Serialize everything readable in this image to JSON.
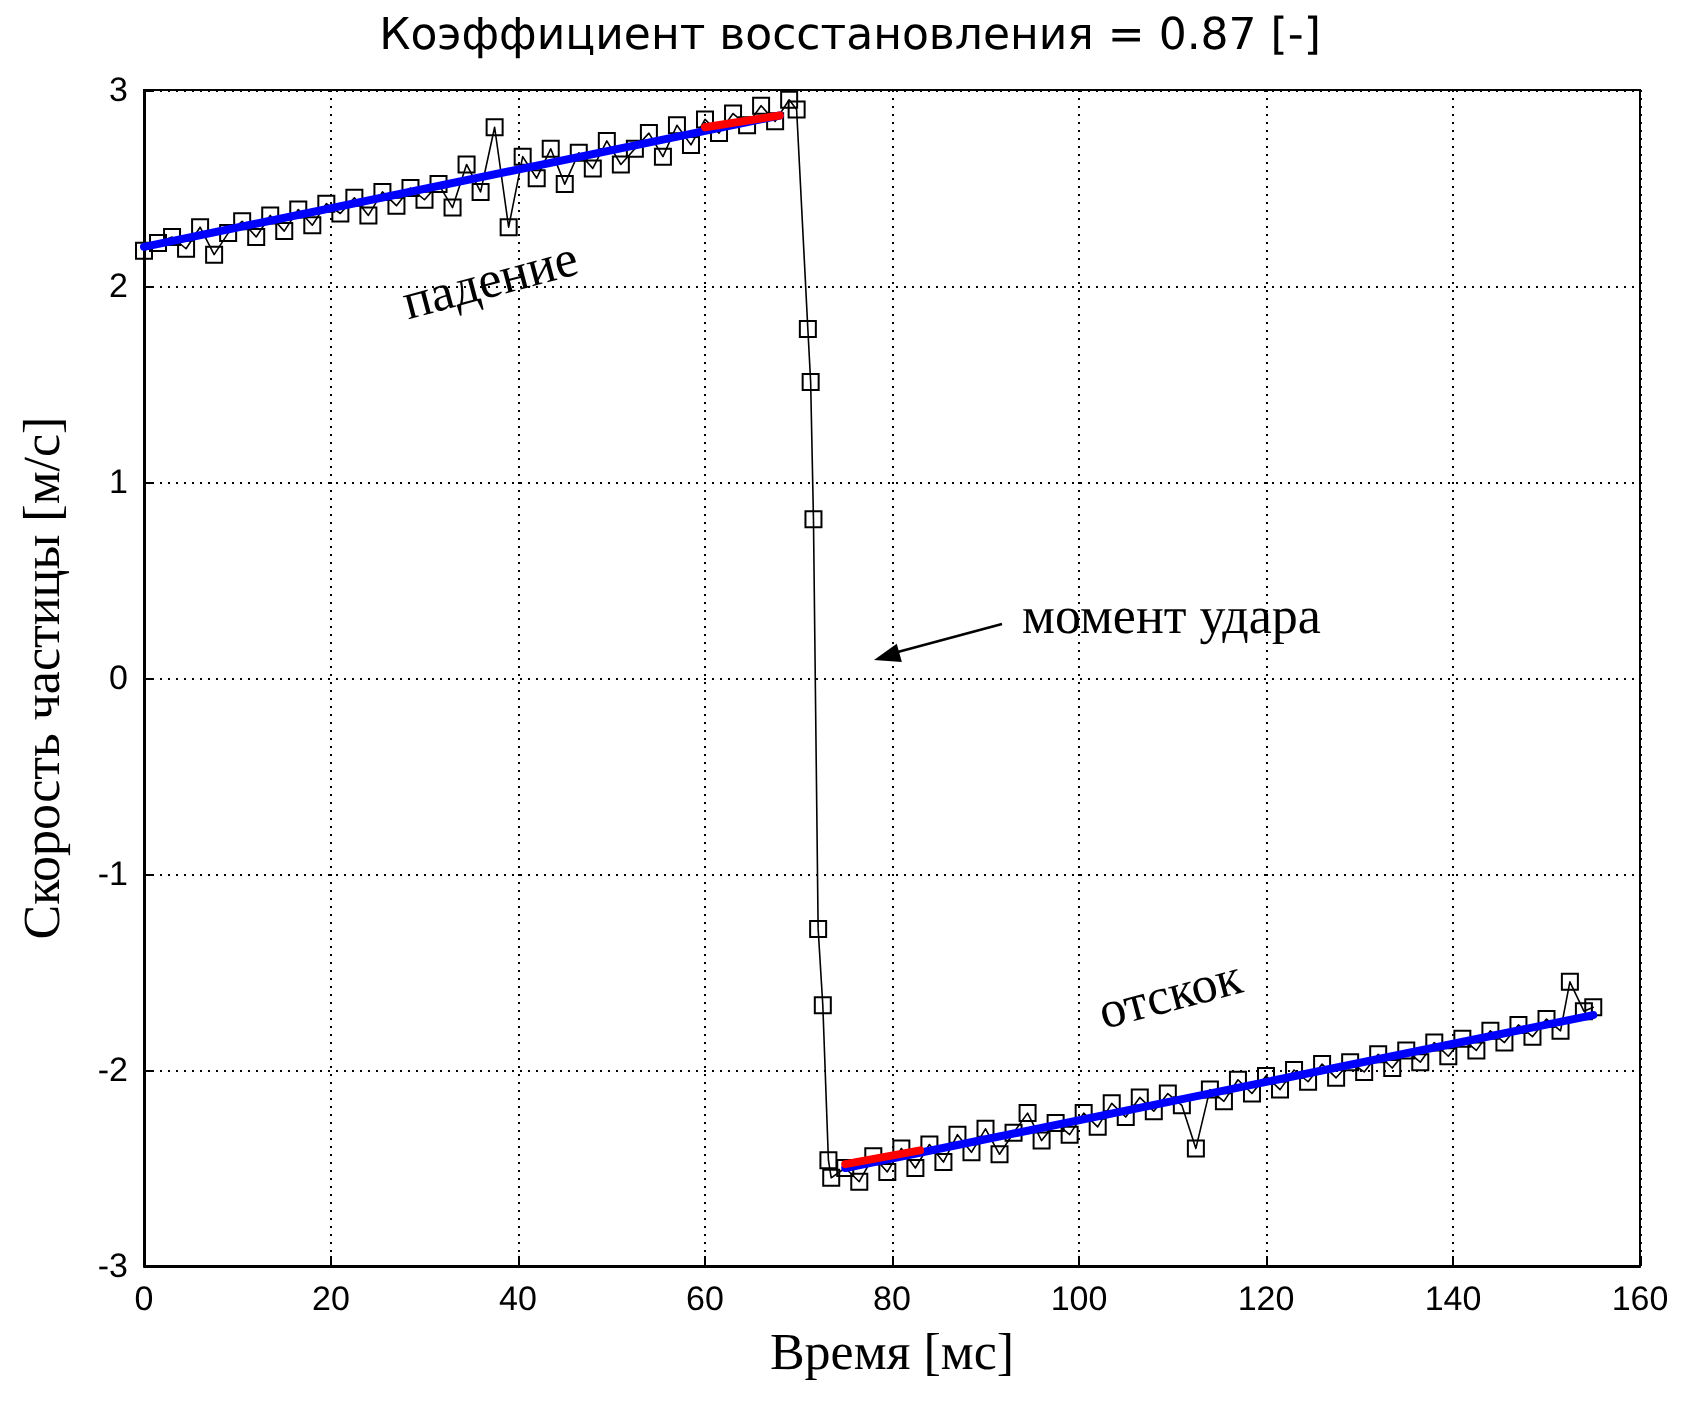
{
  "chart_data": {
    "type": "line",
    "title": "Коэффициент восстановления = 0.87 [-]",
    "xlabel": "Время [мс]",
    "ylabel": "Скорость частицы [м/с]",
    "xlim": [
      0,
      160
    ],
    "xticks": [
      0,
      20,
      40,
      60,
      80,
      100,
      120,
      140,
      160
    ],
    "ylim": [
      -3,
      3
    ],
    "yticks": [
      -3,
      -2,
      -1,
      0,
      1,
      2,
      3
    ],
    "grid": true,
    "annotations": [
      "падение",
      "отскок",
      "момент удара"
    ],
    "series": [
      {
        "color": "#000000",
        "marker": "square",
        "line_style": "solid",
        "x": [
          0,
          1.5,
          3,
          4.5,
          6,
          7.5,
          9,
          10.5,
          12,
          13.5,
          15,
          16.5,
          18,
          19.5,
          21,
          22.5,
          24,
          25.5,
          27,
          28.5,
          30,
          31.5,
          33,
          34.5,
          36,
          37.5,
          39,
          40.5,
          42,
          43.5,
          45,
          46.5,
          48,
          49.5,
          51,
          52.5,
          54,
          55.5,
          57,
          58.5,
          60,
          61.5,
          63,
          64.5,
          66,
          67.5,
          69,
          69.8,
          71,
          71.3,
          71.6,
          72.1,
          72.6,
          73.2,
          73.5,
          75,
          76.5,
          78,
          79.5,
          81,
          82.5,
          84,
          85.5,
          87,
          88.5,
          90,
          91.5,
          93,
          94.5,
          96,
          97.5,
          99,
          100.5,
          102,
          103.5,
          105,
          106.5,
          108,
          109.5,
          111,
          112.5,
          114,
          115.5,
          117,
          118.5,
          120,
          121.5,
          123,
          124.5,
          126,
          127.5,
          129,
          130.5,
          132,
          133.5,
          135,
          136.5,
          138,
          139.5,
          141,
          142.5,
          144,
          145.5,
          147,
          148.5,
          150,
          151.5,
          152.5,
          154,
          155
        ],
        "values": [
          2.18,
          2.22,
          2.25,
          2.19,
          2.3,
          2.16,
          2.27,
          2.33,
          2.25,
          2.36,
          2.28,
          2.39,
          2.31,
          2.42,
          2.37,
          2.45,
          2.36,
          2.48,
          2.41,
          2.5,
          2.44,
          2.52,
          2.4,
          2.62,
          2.48,
          2.81,
          2.3,
          2.66,
          2.55,
          2.7,
          2.52,
          2.68,
          2.6,
          2.74,
          2.62,
          2.7,
          2.78,
          2.66,
          2.82,
          2.72,
          2.85,
          2.78,
          2.88,
          2.82,
          2.92,
          2.84,
          2.95,
          2.9,
          1.78,
          1.51,
          0.81,
          -1.28,
          -1.67,
          -2.46,
          -2.55,
          -2.5,
          -2.57,
          -2.44,
          -2.52,
          -2.4,
          -2.5,
          -2.38,
          -2.47,
          -2.33,
          -2.42,
          -2.3,
          -2.43,
          -2.32,
          -2.22,
          -2.36,
          -2.27,
          -2.33,
          -2.22,
          -2.29,
          -2.17,
          -2.24,
          -2.14,
          -2.21,
          -2.12,
          -2.18,
          -2.4,
          -2.1,
          -2.16,
          -2.05,
          -2.12,
          -2.03,
          -2.1,
          -2,
          -2.06,
          -1.97,
          -2.04,
          -1.96,
          -2.01,
          -1.92,
          -1.99,
          -1.9,
          -1.96,
          -1.86,
          -1.93,
          -1.84,
          -1.9,
          -1.8,
          -1.86,
          -1.77,
          -1.83,
          -1.74,
          -1.8,
          -1.55,
          -1.7,
          -1.68
        ]
      },
      {
        "color": "#0000ff",
        "marker": "none",
        "line_style": "solid",
        "x": [
          0,
          68
        ],
        "values": [
          2.2,
          2.87
        ]
      },
      {
        "color": "#0000ff",
        "marker": "none",
        "line_style": "solid",
        "x": [
          75,
          155
        ],
        "values": [
          -2.5,
          -1.72
        ]
      },
      {
        "color": "#ff0000",
        "marker": "none",
        "line_style": "solid",
        "x": [
          60,
          68
        ],
        "values": [
          2.81,
          2.87
        ]
      },
      {
        "color": "#ff0000",
        "marker": "none",
        "line_style": "solid",
        "x": [
          75,
          83
        ],
        "values": [
          -2.48,
          -2.41
        ]
      }
    ]
  }
}
